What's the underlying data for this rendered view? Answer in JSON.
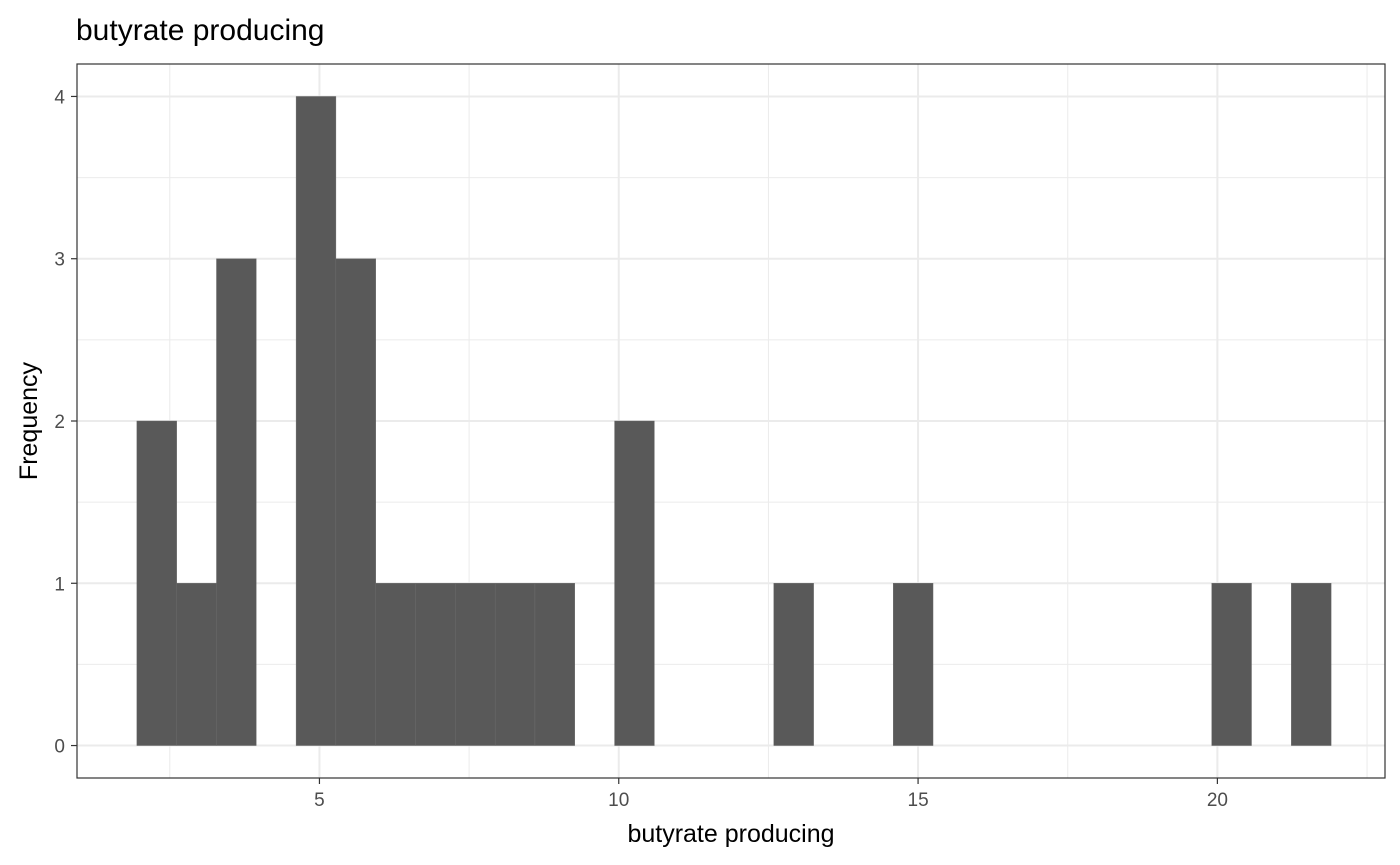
{
  "chart_data": {
    "type": "bar",
    "subtype": "histogram",
    "title": "butyrate producing",
    "xlabel": "butyrate producing",
    "ylabel": "Frequency",
    "xlim": [
      0.95,
      22.8
    ],
    "ylim": [
      -0.2,
      4.2
    ],
    "x_ticks": [
      5,
      10,
      15,
      20
    ],
    "x_tick_labels": [
      "5",
      "10",
      "15",
      "20"
    ],
    "y_ticks": [
      0,
      1,
      2,
      3,
      4
    ],
    "y_tick_labels": [
      "0",
      "1",
      "2",
      "3",
      "4"
    ],
    "bin_width": 0.665,
    "bins": [
      {
        "start": 1.95,
        "end": 2.615,
        "count": 2
      },
      {
        "start": 2.615,
        "end": 3.28,
        "count": 1
      },
      {
        "start": 3.28,
        "end": 3.945,
        "count": 3
      },
      {
        "start": 3.945,
        "end": 4.61,
        "count": 0
      },
      {
        "start": 4.61,
        "end": 5.275,
        "count": 4
      },
      {
        "start": 5.275,
        "end": 5.94,
        "count": 3
      },
      {
        "start": 5.94,
        "end": 6.605,
        "count": 1
      },
      {
        "start": 6.605,
        "end": 7.27,
        "count": 1
      },
      {
        "start": 7.27,
        "end": 7.935,
        "count": 1
      },
      {
        "start": 7.935,
        "end": 8.6,
        "count": 1
      },
      {
        "start": 8.6,
        "end": 9.265,
        "count": 1
      },
      {
        "start": 9.265,
        "end": 9.93,
        "count": 0
      },
      {
        "start": 9.93,
        "end": 10.595,
        "count": 2
      },
      {
        "start": 10.595,
        "end": 11.26,
        "count": 0
      },
      {
        "start": 11.26,
        "end": 11.925,
        "count": 0
      },
      {
        "start": 11.925,
        "end": 12.59,
        "count": 0
      },
      {
        "start": 12.59,
        "end": 13.255,
        "count": 1
      },
      {
        "start": 13.255,
        "end": 13.92,
        "count": 0
      },
      {
        "start": 13.92,
        "end": 14.585,
        "count": 0
      },
      {
        "start": 14.585,
        "end": 15.25,
        "count": 1
      },
      {
        "start": 15.25,
        "end": 15.915,
        "count": 0
      },
      {
        "start": 15.915,
        "end": 16.58,
        "count": 0
      },
      {
        "start": 16.58,
        "end": 17.245,
        "count": 0
      },
      {
        "start": 17.245,
        "end": 17.91,
        "count": 0
      },
      {
        "start": 17.91,
        "end": 18.575,
        "count": 0
      },
      {
        "start": 18.575,
        "end": 19.24,
        "count": 0
      },
      {
        "start": 19.24,
        "end": 19.905,
        "count": 0
      },
      {
        "start": 19.905,
        "end": 20.57,
        "count": 1
      },
      {
        "start": 20.57,
        "end": 21.235,
        "count": 0
      },
      {
        "start": 21.235,
        "end": 21.9,
        "count": 1
      }
    ],
    "grid": true,
    "bar_color": "#595959",
    "grid_color": "#ebebeb",
    "border_color": "#333333"
  }
}
